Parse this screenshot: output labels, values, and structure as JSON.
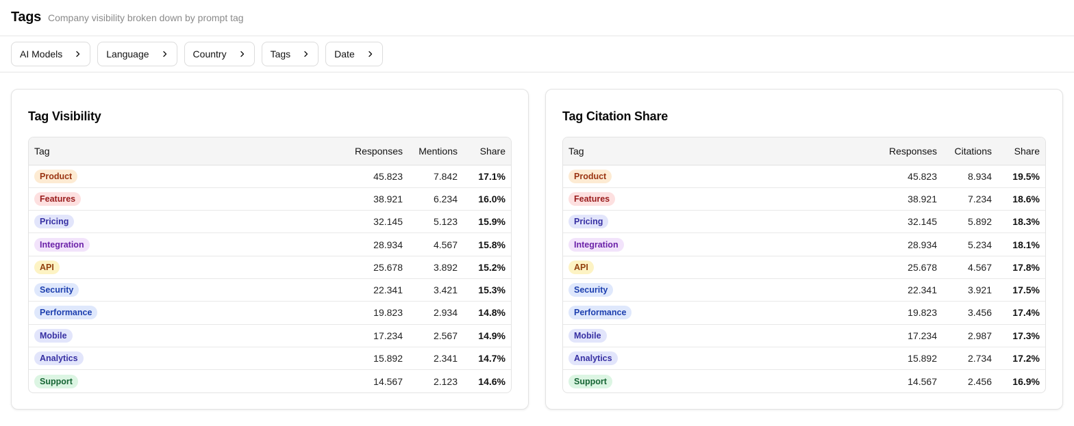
{
  "header": {
    "title": "Tags",
    "subtitle": "Company visibility broken down by prompt tag"
  },
  "filters": [
    {
      "label": "AI Models",
      "icon": "chevron-right-icon"
    },
    {
      "label": "Language",
      "icon": "chevron-right-icon"
    },
    {
      "label": "Country",
      "icon": "chevron-right-icon"
    },
    {
      "label": "Tags",
      "icon": "chevron-right-icon"
    },
    {
      "label": "Date",
      "icon": "chevron-right-icon"
    }
  ],
  "tag_colors": {
    "Product": {
      "bg": "#fdebd3",
      "fg": "#9a3412"
    },
    "Features": {
      "bg": "#fde0e0",
      "fg": "#991b1b"
    },
    "Pricing": {
      "bg": "#e2e5fb",
      "fg": "#3730a3"
    },
    "Integration": {
      "bg": "#f2e3fb",
      "fg": "#6b21a8"
    },
    "API": {
      "bg": "#fdf3c4",
      "fg": "#92400e"
    },
    "Security": {
      "bg": "#dfe8fc",
      "fg": "#1e40af"
    },
    "Performance": {
      "bg": "#dfe8fc",
      "fg": "#1e40af"
    },
    "Mobile": {
      "bg": "#e2e5fb",
      "fg": "#3730a3"
    },
    "Analytics": {
      "bg": "#e2e5fb",
      "fg": "#3730a3"
    },
    "Support": {
      "bg": "#dcf5e3",
      "fg": "#166534"
    }
  },
  "visibility": {
    "title": "Tag Visibility",
    "columns": [
      "Tag",
      "Responses",
      "Mentions",
      "Share"
    ],
    "rows": [
      {
        "tag": "Product",
        "responses": "45.823",
        "mid": "7.842",
        "share": "17.1%"
      },
      {
        "tag": "Features",
        "responses": "38.921",
        "mid": "6.234",
        "share": "16.0%"
      },
      {
        "tag": "Pricing",
        "responses": "32.145",
        "mid": "5.123",
        "share": "15.9%"
      },
      {
        "tag": "Integration",
        "responses": "28.934",
        "mid": "4.567",
        "share": "15.8%"
      },
      {
        "tag": "API",
        "responses": "25.678",
        "mid": "3.892",
        "share": "15.2%"
      },
      {
        "tag": "Security",
        "responses": "22.341",
        "mid": "3.421",
        "share": "15.3%"
      },
      {
        "tag": "Performance",
        "responses": "19.823",
        "mid": "2.934",
        "share": "14.8%"
      },
      {
        "tag": "Mobile",
        "responses": "17.234",
        "mid": "2.567",
        "share": "14.9%"
      },
      {
        "tag": "Analytics",
        "responses": "15.892",
        "mid": "2.341",
        "share": "14.7%"
      },
      {
        "tag": "Support",
        "responses": "14.567",
        "mid": "2.123",
        "share": "14.6%"
      }
    ]
  },
  "citation": {
    "title": "Tag Citation Share",
    "columns": [
      "Tag",
      "Responses",
      "Citations",
      "Share"
    ],
    "rows": [
      {
        "tag": "Product",
        "responses": "45.823",
        "mid": "8.934",
        "share": "19.5%"
      },
      {
        "tag": "Features",
        "responses": "38.921",
        "mid": "7.234",
        "share": "18.6%"
      },
      {
        "tag": "Pricing",
        "responses": "32.145",
        "mid": "5.892",
        "share": "18.3%"
      },
      {
        "tag": "Integration",
        "responses": "28.934",
        "mid": "5.234",
        "share": "18.1%"
      },
      {
        "tag": "API",
        "responses": "25.678",
        "mid": "4.567",
        "share": "17.8%"
      },
      {
        "tag": "Security",
        "responses": "22.341",
        "mid": "3.921",
        "share": "17.5%"
      },
      {
        "tag": "Performance",
        "responses": "19.823",
        "mid": "3.456",
        "share": "17.4%"
      },
      {
        "tag": "Mobile",
        "responses": "17.234",
        "mid": "2.987",
        "share": "17.3%"
      },
      {
        "tag": "Analytics",
        "responses": "15.892",
        "mid": "2.734",
        "share": "17.2%"
      },
      {
        "tag": "Support",
        "responses": "14.567",
        "mid": "2.456",
        "share": "16.9%"
      }
    ]
  }
}
